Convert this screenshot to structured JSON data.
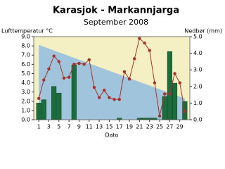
{
  "chart_data": {
    "type": "combo",
    "title": "Karasjok - Markannjarga",
    "subtitle": "September 2008",
    "y_label": "Lufttemperatur °C",
    "y2_label": "Nedbør (mm)",
    "x_label": "Dato",
    "x": [
      1,
      2,
      3,
      4,
      5,
      6,
      7,
      8,
      9,
      10,
      11,
      12,
      13,
      14,
      15,
      16,
      17,
      18,
      19,
      20,
      21,
      22,
      23,
      24,
      25,
      26,
      27,
      28,
      29,
      30
    ],
    "xlim": [
      0,
      31
    ],
    "xticks": [
      1,
      3,
      5,
      7,
      9,
      11,
      13,
      15,
      17,
      19,
      21,
      23,
      25,
      27,
      29
    ],
    "ylim": [
      0,
      9
    ],
    "yticks": [
      {
        "value": 0,
        "label": "0.0"
      },
      {
        "value": 1,
        "label": "1.0"
      },
      {
        "value": 2,
        "label": "2.0"
      },
      {
        "value": 3,
        "label": "3.0"
      },
      {
        "value": 4,
        "label": "4.0"
      },
      {
        "value": 5,
        "label": "5.0"
      },
      {
        "value": 6,
        "label": "6.0"
      },
      {
        "value": 7,
        "label": "7.0"
      },
      {
        "value": 8,
        "label": "8.0"
      },
      {
        "value": 9,
        "label": "9.0"
      }
    ],
    "y2lim": [
      0,
      5
    ],
    "y2ticks": [
      {
        "value": 0,
        "label": "0.0"
      },
      {
        "value": 1,
        "label": "1.0"
      },
      {
        "value": 2,
        "label": "2.0"
      },
      {
        "value": 3,
        "label": "3.0"
      },
      {
        "value": 4,
        "label": "4.0"
      },
      {
        "value": 5,
        "label": "5.0"
      }
    ],
    "background": "#f4f0c4",
    "series": [
      {
        "type": "area",
        "color": "#9fc4dc",
        "values": [
          8.1,
          7.9,
          7.7,
          7.5,
          7.3,
          7.1,
          6.9,
          6.7,
          6.5,
          6.3,
          6.1,
          5.9,
          5.7,
          5.5,
          5.3,
          5.1,
          4.9,
          4.7,
          4.5,
          4.3,
          4.1,
          3.9,
          3.7,
          3.5,
          3.3,
          3.1,
          2.9,
          2.7,
          2.5,
          2.3
        ]
      },
      {
        "type": "bar",
        "axis": "y2",
        "color": "#1b6e3c",
        "values": [
          1.0,
          1.2,
          0,
          2.0,
          1.6,
          0,
          0,
          3.3,
          0,
          0,
          0,
          0,
          0,
          0,
          0,
          0,
          0.1,
          0,
          0,
          0,
          0.1,
          0.1,
          0.1,
          0.1,
          0,
          1.4,
          4.1,
          2.2,
          0,
          1.1
        ]
      },
      {
        "type": "line",
        "color": "#a8322a",
        "values": [
          2.3,
          4.3,
          5.5,
          6.9,
          6.3,
          4.5,
          4.6,
          6.0,
          6.1,
          6.0,
          6.5,
          3.5,
          2.4,
          3.2,
          2.4,
          2.2,
          2.2,
          5.2,
          4.4,
          6.6,
          8.8,
          8.3,
          7.5,
          4.0,
          0.4,
          2.8,
          2.8,
          5.0,
          4.0,
          0.9
        ]
      }
    ]
  }
}
